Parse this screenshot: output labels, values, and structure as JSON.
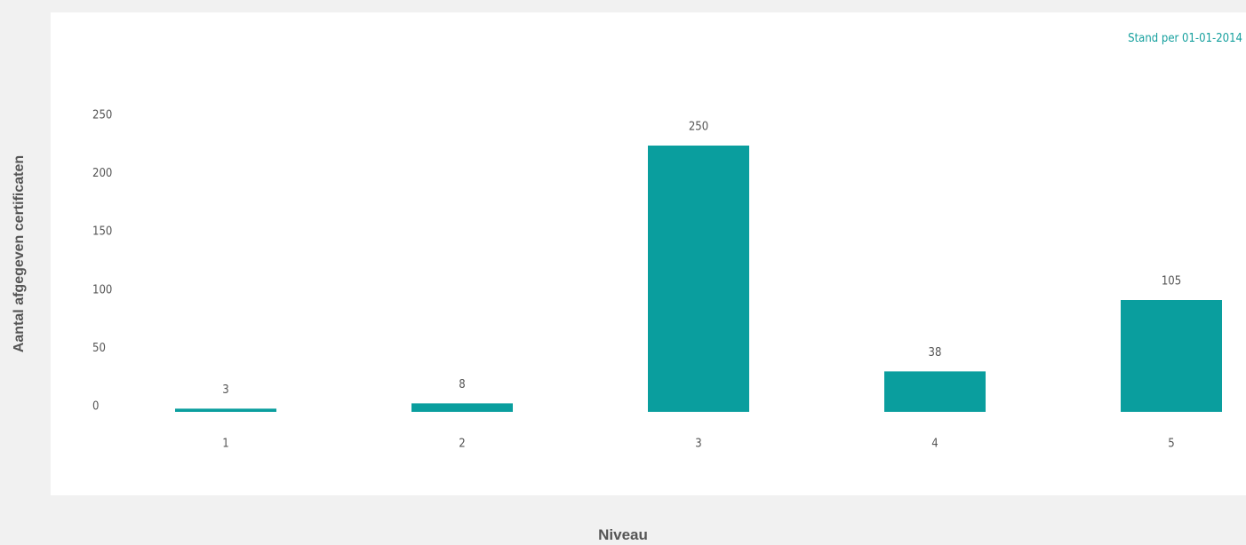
{
  "chart_data": {
    "type": "bar",
    "categories": [
      "1",
      "2",
      "3",
      "4",
      "5"
    ],
    "values": [
      3,
      8,
      250,
      38,
      105
    ],
    "xlabel": "Niveau",
    "ylabel": "Aantal afgegeven certificaten",
    "annotation": "Stand per 01-01-2014",
    "yticks": [
      "0",
      "50",
      "100",
      "150",
      "200",
      "250"
    ],
    "ytick_values": [
      0,
      50,
      100,
      150,
      200,
      250
    ],
    "ylim": [
      0,
      250
    ],
    "grid": false,
    "legend": "none",
    "bar_color": "#0a9e9e"
  }
}
